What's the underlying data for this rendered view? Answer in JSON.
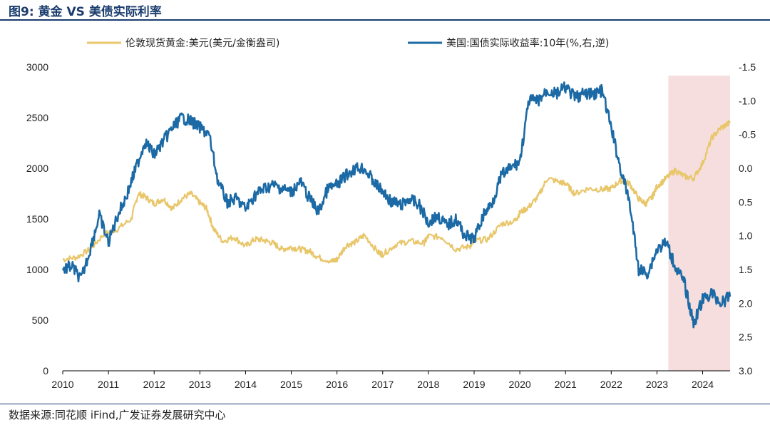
{
  "header": {
    "title": "图9:  黄金  VS  美债实际利率"
  },
  "footer": {
    "source": "数据来源:同花顺 iFind,广发证券发展研究中心"
  },
  "colors": {
    "gold": "#e8c66a",
    "blue": "#1b6aa5",
    "highlight": "#f6dede",
    "axis": "#000000"
  },
  "chart_data": {
    "type": "line",
    "title": "黄金  VS  美债实际利率",
    "x_ticks": [
      "2010",
      "2011",
      "2012",
      "2013",
      "2014",
      "2015",
      "2016",
      "2017",
      "2018",
      "2019",
      "2020",
      "2021",
      "2022",
      "2023",
      "2024"
    ],
    "xlim": [
      2010.0,
      2024.6
    ],
    "y_left": {
      "ticks": [
        "3000",
        "2500",
        "2000",
        "1500",
        "1000",
        "500",
        "0"
      ],
      "range": [
        0,
        3000
      ]
    },
    "y_right": {
      "ticks": [
        "-1.5",
        "-1.0",
        "-0.5",
        "0.0",
        "0.5",
        "1.0",
        "1.5",
        "2.0",
        "2.5",
        "3.0"
      ],
      "range": [
        -1.5,
        3.0
      ],
      "inverted": true
    },
    "highlight_region": [
      2023.25,
      2024.6
    ],
    "series": [
      {
        "name": "伦敦现货黄金:美元(美元/金衡盎司)",
        "axis": "left",
        "x": [
          2010.0,
          2010.3,
          2010.6,
          2010.9,
          2011.2,
          2011.5,
          2011.65,
          2011.8,
          2012.0,
          2012.2,
          2012.4,
          2012.6,
          2012.8,
          2013.0,
          2013.15,
          2013.3,
          2013.5,
          2013.75,
          2014.0,
          2014.2,
          2014.4,
          2014.6,
          2014.8,
          2015.0,
          2015.2,
          2015.4,
          2015.6,
          2015.9,
          2016.0,
          2016.2,
          2016.4,
          2016.6,
          2016.9,
          2017.0,
          2017.3,
          2017.6,
          2017.9,
          2018.0,
          2018.3,
          2018.6,
          2018.9,
          2019.0,
          2019.3,
          2019.6,
          2019.9,
          2020.0,
          2020.2,
          2020.4,
          2020.6,
          2020.9,
          2021.0,
          2021.2,
          2021.5,
          2021.8,
          2022.0,
          2022.2,
          2022.4,
          2022.6,
          2022.75,
          2022.9,
          2023.0,
          2023.2,
          2023.4,
          2023.6,
          2023.8,
          2024.0,
          2024.2,
          2024.4,
          2024.6
        ],
        "y": [
          1100,
          1120,
          1200,
          1350,
          1400,
          1500,
          1750,
          1720,
          1650,
          1700,
          1600,
          1700,
          1750,
          1660,
          1600,
          1400,
          1280,
          1320,
          1230,
          1300,
          1290,
          1260,
          1200,
          1220,
          1200,
          1180,
          1120,
          1080,
          1100,
          1240,
          1270,
          1340,
          1170,
          1150,
          1250,
          1280,
          1260,
          1330,
          1320,
          1200,
          1230,
          1280,
          1300,
          1450,
          1480,
          1560,
          1620,
          1720,
          1900,
          1860,
          1850,
          1750,
          1800,
          1790,
          1800,
          1880,
          1850,
          1700,
          1650,
          1720,
          1820,
          1900,
          1980,
          1920,
          1900,
          2050,
          2300,
          2400,
          2450
        ]
      },
      {
        "name": "美国:国债实际收益率:10年(%,右,逆)",
        "axis": "right",
        "x": [
          2010.0,
          2010.2,
          2010.4,
          2010.6,
          2010.8,
          2011.0,
          2011.2,
          2011.4,
          2011.6,
          2011.8,
          2012.0,
          2012.2,
          2012.4,
          2012.6,
          2012.8,
          2013.0,
          2013.2,
          2013.4,
          2013.6,
          2013.8,
          2014.0,
          2014.2,
          2014.4,
          2014.6,
          2014.8,
          2015.0,
          2015.2,
          2015.4,
          2015.6,
          2015.8,
          2016.0,
          2016.2,
          2016.4,
          2016.6,
          2016.8,
          2017.0,
          2017.2,
          2017.4,
          2017.6,
          2017.8,
          2018.0,
          2018.2,
          2018.4,
          2018.6,
          2018.8,
          2019.0,
          2019.2,
          2019.4,
          2019.6,
          2019.8,
          2020.0,
          2020.2,
          2020.4,
          2020.6,
          2020.8,
          2021.0,
          2021.2,
          2021.4,
          2021.6,
          2021.8,
          2022.0,
          2022.2,
          2022.4,
          2022.6,
          2022.8,
          2023.0,
          2023.2,
          2023.4,
          2023.6,
          2023.8,
          2024.0,
          2024.2,
          2024.4,
          2024.6
        ],
        "y": [
          1.5,
          1.45,
          1.65,
          1.2,
          0.7,
          1.1,
          0.7,
          0.4,
          0.0,
          -0.4,
          -0.2,
          -0.4,
          -0.6,
          -0.75,
          -0.7,
          -0.6,
          -0.5,
          0.2,
          0.5,
          0.45,
          0.6,
          0.4,
          0.3,
          0.25,
          0.3,
          0.35,
          0.2,
          0.45,
          0.65,
          0.3,
          0.25,
          0.1,
          0.0,
          0.0,
          0.2,
          0.35,
          0.5,
          0.55,
          0.45,
          0.55,
          0.8,
          0.7,
          0.85,
          0.75,
          1.0,
          1.05,
          0.7,
          0.5,
          0.1,
          0.0,
          -0.1,
          -1.0,
          -1.0,
          -1.15,
          -1.1,
          -1.2,
          -1.05,
          -1.1,
          -1.1,
          -1.15,
          -0.6,
          0.0,
          0.5,
          1.5,
          1.55,
          1.2,
          1.1,
          1.45,
          1.7,
          2.3,
          1.95,
          1.85,
          2.0,
          1.9
        ]
      }
    ]
  }
}
